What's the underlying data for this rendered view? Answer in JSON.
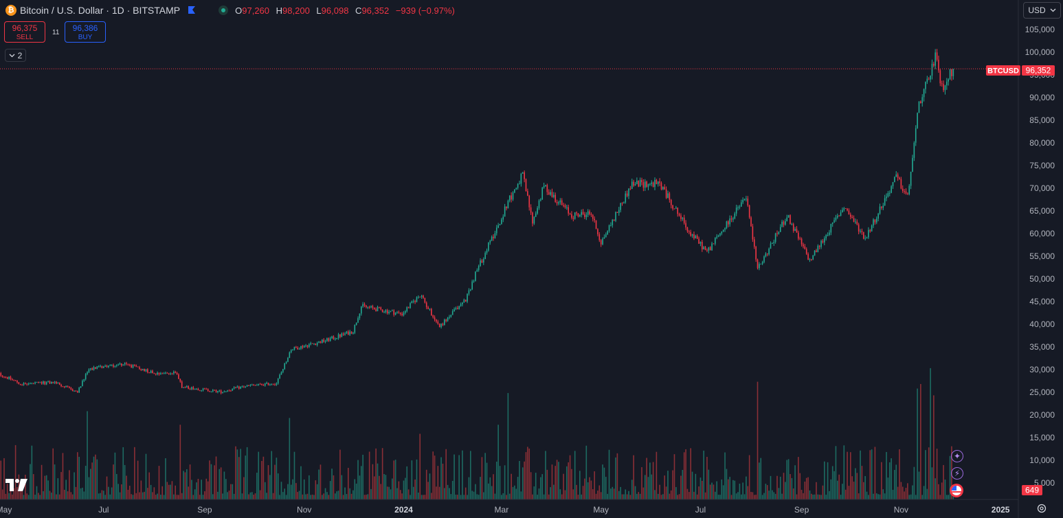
{
  "legend": {
    "symbol_icon": "bitcoin-icon",
    "title": "Bitcoin / U.S. Dollar · 1D · BITSTAMP",
    "flag_icon": "flag-icon",
    "ohlc": {
      "o_label": "O",
      "o_value": "97,260",
      "h_label": "H",
      "h_value": "98,200",
      "l_label": "L",
      "l_value": "96,098",
      "c_label": "C",
      "c_value": "96,352",
      "change": "−939 (−0.97%)"
    }
  },
  "trading": {
    "sell_price": "96,375",
    "sell_label": "SELL",
    "spread": "11",
    "buy_price": "96,386",
    "buy_label": "BUY"
  },
  "indicators_toggle": {
    "count": "2",
    "icon": "chevron-down-icon"
  },
  "currency_selector": {
    "value": "USD",
    "icon": "chevron-down-icon"
  },
  "price_marker": {
    "symbol": "BTCUSD",
    "value": "96,352"
  },
  "volume_marker": {
    "value": "649"
  },
  "colors": {
    "background": "#161a25",
    "up": "#22ab94",
    "down": "#f23645",
    "up_volume": "#1d6b62",
    "down_volume": "#8a2f36",
    "axis_text": "#b2b5be"
  },
  "chart_data": {
    "type": "candlestick",
    "symbol": "BTCUSD",
    "interval": "1D",
    "exchange": "BITSTAMP",
    "y_axis": {
      "range": [
        0,
        108000
      ],
      "tick_labels": [
        "5,000",
        "10,000",
        "15,000",
        "20,000",
        "25,000",
        "30,000",
        "35,000",
        "40,000",
        "45,000",
        "50,000",
        "55,000",
        "60,000",
        "65,000",
        "70,000",
        "75,000",
        "80,000",
        "85,000",
        "90,000",
        "95,000",
        "100,000",
        "105,000"
      ],
      "tick_values": [
        5000,
        10000,
        15000,
        20000,
        25000,
        30000,
        35000,
        40000,
        45000,
        50000,
        55000,
        60000,
        65000,
        70000,
        75000,
        80000,
        85000,
        90000,
        95000,
        100000,
        105000
      ]
    },
    "x_axis": {
      "tick_labels": [
        "May",
        "Jul",
        "Sep",
        "Nov",
        "2024",
        "Mar",
        "May",
        "Jul",
        "Sep",
        "Nov",
        "2025"
      ],
      "tick_dates": [
        "2023-05-01",
        "2023-07-01",
        "2023-09-01",
        "2023-11-01",
        "2024-01-01",
        "2024-03-01",
        "2024-05-01",
        "2024-07-01",
        "2024-09-01",
        "2024-11-01",
        "2025-01-01"
      ],
      "start_date": "2023-04-25",
      "end_date": "2024-12-03"
    },
    "last_close": 96352,
    "current_volume": 649,
    "price_path": [
      [
        "2023-04-25",
        29500
      ],
      [
        "2023-05-12",
        26800
      ],
      [
        "2023-06-01",
        27200
      ],
      [
        "2023-06-15",
        25000
      ],
      [
        "2023-06-22",
        30200
      ],
      [
        "2023-07-13",
        31300
      ],
      [
        "2023-08-01",
        29300
      ],
      [
        "2023-08-15",
        29200
      ],
      [
        "2023-08-18",
        26200
      ],
      [
        "2023-09-11",
        25100
      ],
      [
        "2023-09-25",
        26300
      ],
      [
        "2023-10-15",
        27000
      ],
      [
        "2023-10-24",
        34500
      ],
      [
        "2023-11-15",
        36500
      ],
      [
        "2023-12-01",
        38500
      ],
      [
        "2023-12-06",
        44000
      ],
      [
        "2023-12-31",
        42300
      ],
      [
        "2024-01-11",
        46500
      ],
      [
        "2024-01-23",
        39500
      ],
      [
        "2024-02-08",
        45500
      ],
      [
        "2024-02-15",
        52000
      ],
      [
        "2024-02-28",
        62000
      ],
      [
        "2024-03-05",
        67000
      ],
      [
        "2024-03-14",
        73000
      ],
      [
        "2024-03-20",
        62500
      ],
      [
        "2024-03-27",
        70500
      ],
      [
        "2024-04-13",
        64000
      ],
      [
        "2024-04-25",
        64500
      ],
      [
        "2024-05-01",
        58000
      ],
      [
        "2024-05-20",
        71000
      ],
      [
        "2024-06-06",
        71000
      ],
      [
        "2024-06-24",
        60500
      ],
      [
        "2024-07-05",
        56000
      ],
      [
        "2024-07-29",
        68000
      ],
      [
        "2024-08-05",
        52000
      ],
      [
        "2024-08-23",
        64000
      ],
      [
        "2024-09-06",
        54000
      ],
      [
        "2024-09-27",
        66000
      ],
      [
        "2024-10-10",
        59000
      ],
      [
        "2024-10-29",
        72500
      ],
      [
        "2024-11-05",
        68000
      ],
      [
        "2024-11-12",
        88500
      ],
      [
        "2024-11-22",
        99000
      ],
      [
        "2024-11-26",
        92000
      ],
      [
        "2024-12-03",
        96352
      ]
    ],
    "volume_range": [
      0,
      30000
    ],
    "volume_spikes": [
      [
        "2023-05-08",
        12000
      ],
      [
        "2023-06-21",
        19500
      ],
      [
        "2023-08-17",
        16500
      ],
      [
        "2023-10-23",
        18000
      ],
      [
        "2024-01-11",
        14500
      ],
      [
        "2024-02-28",
        16500
      ],
      [
        "2024-03-05",
        23500
      ],
      [
        "2024-08-05",
        26000
      ],
      [
        "2024-11-11",
        24500
      ],
      [
        "2024-11-13",
        25500
      ],
      [
        "2024-11-19",
        29000
      ],
      [
        "2024-11-21",
        23000
      ]
    ]
  }
}
